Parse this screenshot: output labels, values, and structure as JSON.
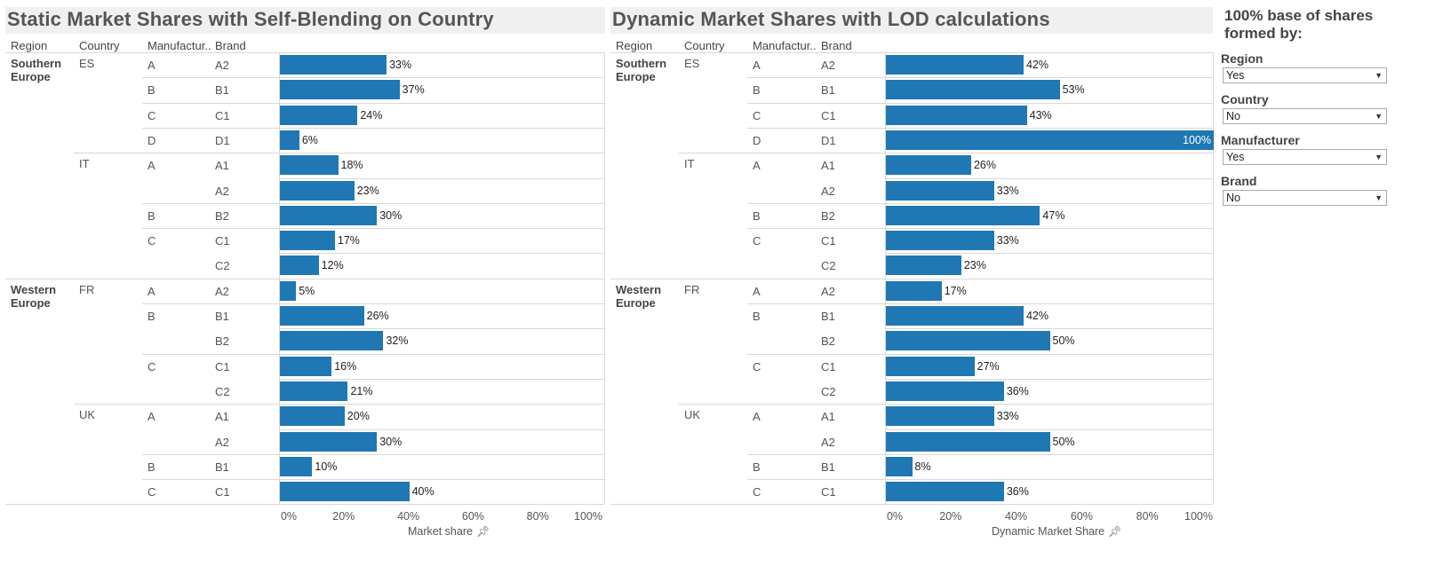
{
  "accent_color": "#1f77b4",
  "column_headers": [
    "Region",
    "Country",
    "Manufactur..",
    "Brand"
  ],
  "regions": [
    {
      "name": "Southern Europe",
      "line1": "Southern",
      "line2": "Europe"
    },
    {
      "name": "Western Europe",
      "line1": "Western",
      "line2": "Europe"
    }
  ],
  "rows": [
    {
      "region": "Southern Europe",
      "country": "ES",
      "manufacturer": "A",
      "brand": "A2"
    },
    {
      "region": "Southern Europe",
      "country": "",
      "manufacturer": "B",
      "brand": "B1"
    },
    {
      "region": "Southern Europe",
      "country": "",
      "manufacturer": "C",
      "brand": "C1"
    },
    {
      "region": "Southern Europe",
      "country": "",
      "manufacturer": "D",
      "brand": "D1"
    },
    {
      "region": "Southern Europe",
      "country": "IT",
      "manufacturer": "A",
      "brand": "A1"
    },
    {
      "region": "Southern Europe",
      "country": "",
      "manufacturer": "",
      "brand": "A2"
    },
    {
      "region": "Southern Europe",
      "country": "",
      "manufacturer": "B",
      "brand": "B2"
    },
    {
      "region": "Southern Europe",
      "country": "",
      "manufacturer": "C",
      "brand": "C1"
    },
    {
      "region": "Southern Europe",
      "country": "",
      "manufacturer": "",
      "brand": "C2"
    },
    {
      "region": "Western Europe",
      "country": "FR",
      "manufacturer": "A",
      "brand": "A2"
    },
    {
      "region": "Western Europe",
      "country": "",
      "manufacturer": "B",
      "brand": "B1"
    },
    {
      "region": "Western Europe",
      "country": "",
      "manufacturer": "",
      "brand": "B2"
    },
    {
      "region": "Western Europe",
      "country": "",
      "manufacturer": "C",
      "brand": "C1"
    },
    {
      "region": "Western Europe",
      "country": "",
      "manufacturer": "",
      "brand": "C2"
    },
    {
      "region": "Western Europe",
      "country": "UK",
      "manufacturer": "A",
      "brand": "A1"
    },
    {
      "region": "Western Europe",
      "country": "",
      "manufacturer": "",
      "brand": "A2"
    },
    {
      "region": "Western Europe",
      "country": "",
      "manufacturer": "B",
      "brand": "B1"
    },
    {
      "region": "Western Europe",
      "country": "",
      "manufacturer": "C",
      "brand": "C1"
    }
  ],
  "chart_data": [
    {
      "type": "bar",
      "orientation": "horizontal",
      "title": "Static Market Shares with Self-Blending on Country",
      "xlabel": "Market share",
      "ylabel": "",
      "xlim": [
        0,
        100
      ],
      "ticks": [
        "0%",
        "20%",
        "40%",
        "60%",
        "80%",
        "100%"
      ],
      "categories": [
        "ES A A2",
        "ES B B1",
        "ES C C1",
        "ES D D1",
        "IT A A1",
        "IT A A2",
        "IT B B2",
        "IT C C1",
        "IT C C2",
        "FR A A2",
        "FR B B1",
        "FR B B2",
        "FR C C1",
        "FR C C2",
        "UK A A1",
        "UK A A2",
        "UK B B1",
        "UK C C1"
      ],
      "values": [
        33,
        37,
        24,
        6,
        18,
        23,
        30,
        17,
        12,
        5,
        26,
        32,
        16,
        21,
        20,
        30,
        10,
        40
      ],
      "value_labels": [
        "33%",
        "37%",
        "24%",
        "6%",
        "18%",
        "23%",
        "30%",
        "17%",
        "12%",
        "5%",
        "26%",
        "32%",
        "16%",
        "21%",
        "20%",
        "30%",
        "10%",
        "40%"
      ]
    },
    {
      "type": "bar",
      "orientation": "horizontal",
      "title": "Dynamic Market Shares with LOD calculations",
      "xlabel": "Dynamic Market Share",
      "ylabel": "",
      "xlim": [
        0,
        100
      ],
      "ticks": [
        "0%",
        "20%",
        "40%",
        "60%",
        "80%",
        "100%"
      ],
      "categories": [
        "ES A A2",
        "ES B B1",
        "ES C C1",
        "ES D D1",
        "IT A A1",
        "IT A A2",
        "IT B B2",
        "IT C C1",
        "IT C C2",
        "FR A A2",
        "FR B B1",
        "FR B B2",
        "FR C C1",
        "FR C C2",
        "UK A A1",
        "UK A A2",
        "UK B B1",
        "UK C C1"
      ],
      "values": [
        42,
        53,
        43,
        100,
        26,
        33,
        47,
        33,
        23,
        17,
        42,
        50,
        27,
        36,
        33,
        50,
        8,
        36
      ],
      "value_labels": [
        "42%",
        "53%",
        "43%",
        "100%",
        "26%",
        "33%",
        "47%",
        "33%",
        "23%",
        "17%",
        "42%",
        "50%",
        "27%",
        "36%",
        "33%",
        "50%",
        "8%",
        "36%"
      ]
    }
  ],
  "filters": {
    "title_line1": "100% base of shares",
    "title_line2": "formed by:",
    "items": [
      {
        "label": "Region",
        "value": "Yes"
      },
      {
        "label": "Country",
        "value": "No"
      },
      {
        "label": "Manufacturer",
        "value": "Yes"
      },
      {
        "label": "Brand",
        "value": "No"
      }
    ]
  }
}
